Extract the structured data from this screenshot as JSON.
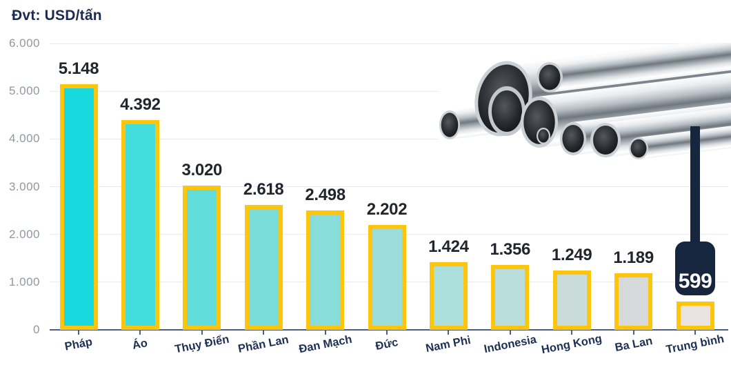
{
  "header": {
    "unit_label": "Đvt: USD/tấn"
  },
  "chart_data": {
    "type": "bar",
    "title": "Đvt: USD/tấn",
    "categories": [
      "Pháp",
      "Áo",
      "Thụy Điển",
      "Phần Lan",
      "Đan Mạch",
      "Đức",
      "Nam Phi",
      "Indonesia",
      "Hong Kong",
      "Ba Lan",
      "Trung bình"
    ],
    "values": [
      5148,
      4392,
      3020,
      2618,
      2498,
      2202,
      1424,
      1356,
      1249,
      1189,
      599
    ],
    "value_labels": [
      "5.148",
      "4.392",
      "3.020",
      "2.618",
      "2.498",
      "2.202",
      "1.424",
      "1.356",
      "1.249",
      "1.189",
      "599"
    ],
    "bar_colors": [
      "#17d9de",
      "#41dedd",
      "#60dddb",
      "#7bddda",
      "#88dcda",
      "#9addda",
      "#aadfdb",
      "#badedb",
      "#c9dcd9",
      "#d7dadb",
      "#eae3e4"
    ],
    "bar_border_color": "#fec50d",
    "xlabel": "",
    "ylabel": "",
    "ylim": [
      0,
      6000
    ],
    "y_ticks": [
      0,
      1000,
      2000,
      3000,
      4000,
      5000,
      6000
    ],
    "y_tick_labels": [
      "0",
      "1.000",
      "2.000",
      "3.000",
      "4.000",
      "5.000",
      "6.000"
    ],
    "grid": true,
    "legend": "none",
    "annotation": {
      "category": "Trung bình",
      "value_label": "599",
      "style": "dark-badge-callout",
      "badge_color": "#16263f",
      "text_color": "#ffffff"
    },
    "decoration": "steel-pipes-photo-top-right"
  },
  "colors": {
    "title_text": "#1c2b4d",
    "value_label_text": "#23242c",
    "x_label_text": "#1c3055",
    "y_label_text": "#9097a1",
    "axis": "#4c5e7c",
    "gridline": "#e9eaf3",
    "background": "#ffffff"
  }
}
